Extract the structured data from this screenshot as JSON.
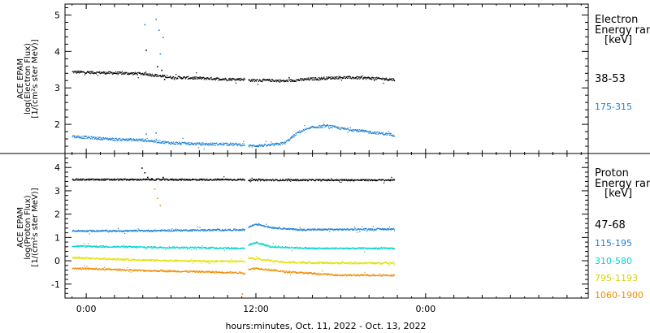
{
  "chart_data": [
    {
      "type": "scatter",
      "ylabel_lines": [
        "ACE EPAM",
        "log(Electron Flux)",
        "[1/(cm²s ster MeV)]"
      ],
      "legend_title": [
        "Electron",
        "Energy ran"
      ],
      "legend_unit": "[keV]",
      "ylim": [
        1.2,
        5.3
      ],
      "yticks": [
        2,
        3,
        4,
        5
      ],
      "series": [
        {
          "name": "38-53",
          "color": "#000000",
          "profile": [
            [
              -1.0,
              3.45
            ],
            [
              4,
              3.4
            ],
            [
              6,
              3.3
            ],
            [
              8,
              3.28
            ],
            [
              10,
              3.25
            ],
            [
              11.2,
              3.25
            ],
            [
              11.4,
              3.22
            ],
            [
              13,
              3.22
            ],
            [
              14,
              3.2
            ],
            [
              16,
              3.26
            ],
            [
              18,
              3.3
            ],
            [
              20,
              3.28
            ],
            [
              21.8,
              3.24
            ]
          ],
          "spikes": [
            [
              4.2,
              4.05
            ],
            [
              5.0,
              3.6
            ],
            [
              5.3,
              3.5
            ],
            [
              5.5,
              3.25
            ]
          ]
        },
        {
          "name": "175-315",
          "color": "#1a7fd4",
          "profile": [
            [
              -1.0,
              1.68
            ],
            [
              2,
              1.6
            ],
            [
              4,
              1.58
            ],
            [
              6,
              1.5
            ],
            [
              8,
              1.47
            ],
            [
              10,
              1.47
            ],
            [
              11.2,
              1.45
            ],
            [
              11.4,
              1.42
            ],
            [
              13,
              1.44
            ],
            [
              14,
              1.5
            ],
            [
              15,
              1.8
            ],
            [
              16,
              1.93
            ],
            [
              17,
              1.97
            ],
            [
              18,
              1.9
            ],
            [
              20,
              1.8
            ],
            [
              21.8,
              1.72
            ]
          ],
          "spikes": [
            [
              4.1,
              4.75
            ],
            [
              4.9,
              4.9
            ],
            [
              5.1,
              4.6
            ],
            [
              5.4,
              4.4
            ],
            [
              5.2,
              3.95
            ],
            [
              4.2,
              1.75
            ],
            [
              4.9,
              1.78
            ]
          ]
        }
      ]
    },
    {
      "type": "scatter",
      "ylabel_lines": [
        "ACE EPAM",
        "log(Proton Flux)",
        "[1/(cm²s ster MeV)]"
      ],
      "legend_title": [
        "Proton",
        "Energy ran"
      ],
      "legend_unit": "[keV]",
      "ylim": [
        -1.6,
        4.6
      ],
      "yticks": [
        -1,
        0,
        1,
        2,
        3,
        4
      ],
      "series": [
        {
          "name": "47-68",
          "color": "#000000",
          "profile": [
            [
              -1.0,
              3.5
            ],
            [
              11.2,
              3.5
            ],
            [
              11.4,
              3.48
            ],
            [
              21.8,
              3.48
            ]
          ],
          "spikes": [
            [
              3.9,
              4.0
            ],
            [
              4.1,
              3.8
            ],
            [
              4.3,
              3.6
            ],
            [
              4.6,
              3.55
            ],
            [
              5.4,
              3.6
            ]
          ]
        },
        {
          "name": "115-195",
          "color": "#1a7fd4",
          "profile": [
            [
              -1.0,
              1.3
            ],
            [
              3,
              1.3
            ],
            [
              6,
              1.32
            ],
            [
              11.2,
              1.35
            ],
            [
              11.4,
              1.45
            ],
            [
              12,
              1.6
            ],
            [
              13,
              1.45
            ],
            [
              15,
              1.35
            ],
            [
              21.8,
              1.38
            ]
          ],
          "spikes": []
        },
        {
          "name": "310-580",
          "color": "#00d4cc",
          "profile": [
            [
              -1.0,
              0.65
            ],
            [
              4,
              0.6
            ],
            [
              8,
              0.58
            ],
            [
              11.2,
              0.55
            ],
            [
              11.4,
              0.7
            ],
            [
              12,
              0.8
            ],
            [
              13,
              0.62
            ],
            [
              16,
              0.55
            ],
            [
              21.8,
              0.55
            ]
          ],
          "spikes": []
        },
        {
          "name": "795-1193",
          "color": "#e0e000",
          "profile": [
            [
              -1.0,
              0.15
            ],
            [
              4,
              0.05
            ],
            [
              8,
              0.0
            ],
            [
              11.2,
              0.0
            ],
            [
              11.4,
              0.15
            ],
            [
              12,
              0.1
            ],
            [
              14,
              -0.05
            ],
            [
              18,
              -0.08
            ],
            [
              21.8,
              -0.08
            ]
          ],
          "spikes": []
        },
        {
          "name": "1060-1900",
          "color": "#f08c00",
          "profile": [
            [
              -1.0,
              -0.3
            ],
            [
              4,
              -0.4
            ],
            [
              8,
              -0.45
            ],
            [
              11.2,
              -0.5
            ],
            [
              11.4,
              -0.35
            ],
            [
              12,
              -0.3
            ],
            [
              14,
              -0.45
            ],
            [
              18,
              -0.6
            ],
            [
              21.8,
              -0.6
            ]
          ],
          "spikes": [
            [
              4.8,
              3.1
            ],
            [
              5.0,
              2.7
            ],
            [
              5.2,
              2.4
            ],
            [
              11.0,
              -1.4
            ]
          ]
        }
      ]
    }
  ],
  "xaxis": {
    "title": "hours:minutes, Oct. 11, 2022 - Oct. 13, 2022",
    "range_hours": [
      -1.5,
      35.5
    ],
    "ticks": [
      {
        "hour": 0,
        "label": "0:00"
      },
      {
        "hour": 12,
        "label": "12:00"
      },
      {
        "hour": 24,
        "label": "0:00"
      }
    ],
    "data_end_hour": 21.8,
    "gap_hour": 11.3
  }
}
